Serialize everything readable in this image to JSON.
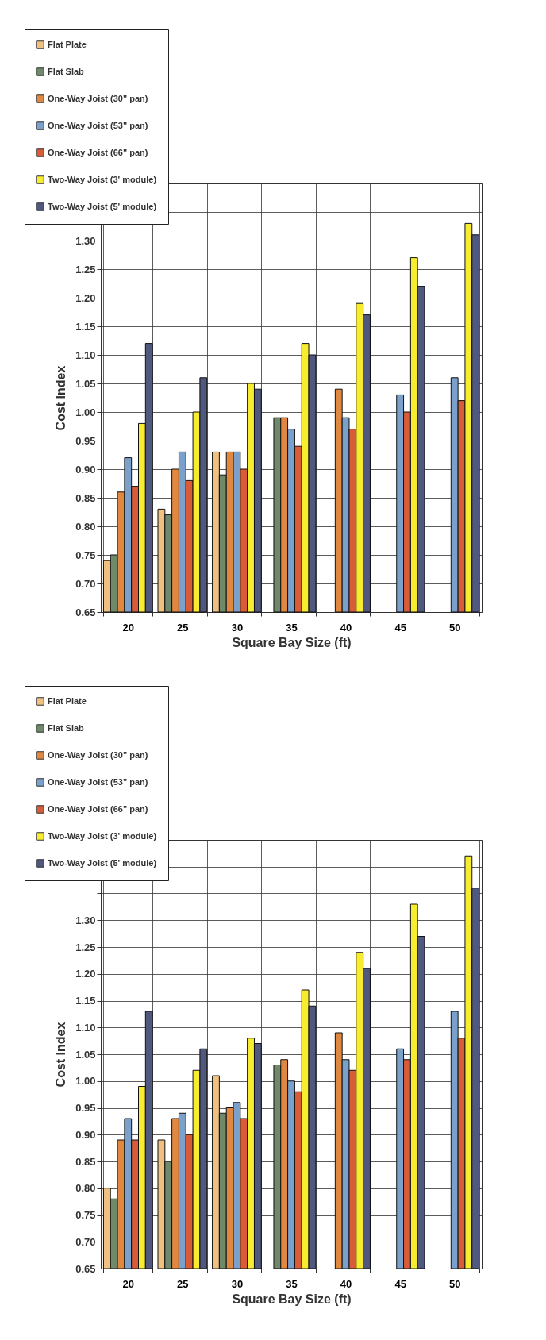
{
  "chart_data": [
    {
      "type": "bar",
      "xlabel": "Square Bay Size (ft)",
      "ylabel": "Cost Index",
      "categories": [
        "20",
        "25",
        "30",
        "35",
        "40",
        "45",
        "50"
      ],
      "ylim": [
        0.65,
        1.4
      ],
      "yticks": [
        0.65,
        {
          "value": 0.7,
          "label": "0.70"
        },
        0.75,
        {
          "value": 0.8,
          "label": "0.80"
        },
        0.85,
        {
          "value": 0.9,
          "label": "0.90"
        },
        0.95,
        {
          "value": 1.0,
          "label": "1.00"
        },
        1.05,
        {
          "value": 1.1,
          "label": "1.10"
        },
        1.15,
        {
          "value": 1.2,
          "label": "1.20"
        },
        1.25,
        {
          "value": 1.3,
          "label": "1.30"
        },
        {
          "value": 1.35,
          "label": null
        },
        {
          "value": 1.4,
          "label": null
        }
      ],
      "grid": true,
      "legend": "top left",
      "series": [
        {
          "name": "Flat Plate",
          "color": "#f0c080",
          "values": [
            0.74,
            0.83,
            0.93,
            null,
            null,
            null,
            null
          ]
        },
        {
          "name": "Flat Slab",
          "color": "#6e8a6a",
          "values": [
            0.75,
            0.82,
            0.89,
            0.99,
            null,
            null,
            null
          ]
        },
        {
          "name": "One-Way Joist (30\" pan)",
          "color": "#e08840",
          "values": [
            0.86,
            0.9,
            0.93,
            0.99,
            1.04,
            null,
            null
          ]
        },
        {
          "name": "One-Way Joist (53\" pan)",
          "color": "#7aa0cc",
          "values": [
            0.92,
            0.93,
            0.93,
            0.97,
            0.99,
            1.03,
            1.06
          ]
        },
        {
          "name": "One-Way Joist (66\" pan)",
          "color": "#d85c38",
          "values": [
            0.87,
            0.88,
            0.9,
            0.94,
            0.97,
            1.0,
            1.02
          ]
        },
        {
          "name": "Two-Way Joist (3' module)",
          "color": "#f8ec30",
          "values": [
            0.98,
            1.0,
            1.05,
            1.12,
            1.19,
            1.27,
            1.33
          ]
        },
        {
          "name": "Two-Way Joist (5' module)",
          "color": "#505880",
          "values": [
            1.12,
            1.06,
            1.04,
            1.1,
            1.17,
            1.22,
            1.31
          ]
        }
      ]
    },
    {
      "type": "bar",
      "xlabel": "Square Bay Size (ft)",
      "ylabel": "Cost Index",
      "categories": [
        "20",
        "25",
        "30",
        "35",
        "40",
        "45",
        "50"
      ],
      "ylim": [
        0.65,
        1.45
      ],
      "yticks": [
        0.65,
        {
          "value": 0.7,
          "label": "0.70"
        },
        0.75,
        {
          "value": 0.8,
          "label": "0.80"
        },
        0.85,
        {
          "value": 0.9,
          "label": "0.90"
        },
        0.95,
        {
          "value": 1.0,
          "label": "1.00"
        },
        1.05,
        {
          "value": 1.1,
          "label": "1.10"
        },
        1.15,
        {
          "value": 1.2,
          "label": "1.20"
        },
        1.25,
        {
          "value": 1.3,
          "label": "1.30"
        },
        {
          "value": 1.35,
          "label": null
        },
        {
          "value": 1.4,
          "label": null
        },
        {
          "value": 1.45,
          "label": null
        }
      ],
      "grid": true,
      "legend": "top left",
      "series": [
        {
          "name": "Flat Plate",
          "color": "#f0c080",
          "values": [
            0.8,
            0.89,
            1.01,
            null,
            null,
            null,
            null
          ]
        },
        {
          "name": "Flat Slab",
          "color": "#6e8a6a",
          "values": [
            0.78,
            0.85,
            0.94,
            1.03,
            null,
            null,
            null
          ]
        },
        {
          "name": "One-Way Joist (30\" pan)",
          "color": "#e08840",
          "values": [
            0.89,
            0.93,
            0.95,
            1.04,
            1.09,
            null,
            null
          ]
        },
        {
          "name": "One-Way Joist (53\" pan)",
          "color": "#7aa0cc",
          "values": [
            0.93,
            0.94,
            0.96,
            1.0,
            1.04,
            1.06,
            1.13
          ]
        },
        {
          "name": "One-Way Joist (66\" pan)",
          "color": "#d85c38",
          "values": [
            0.89,
            0.9,
            0.93,
            0.98,
            1.02,
            1.04,
            1.08
          ]
        },
        {
          "name": "Two-Way Joist (3' module)",
          "color": "#f8ec30",
          "values": [
            0.99,
            1.02,
            1.08,
            1.17,
            1.24,
            1.33,
            1.42
          ]
        },
        {
          "name": "Two-Way Joist (5' module)",
          "color": "#505880",
          "values": [
            1.13,
            1.06,
            1.07,
            1.14,
            1.21,
            1.27,
            1.36
          ]
        }
      ]
    }
  ]
}
